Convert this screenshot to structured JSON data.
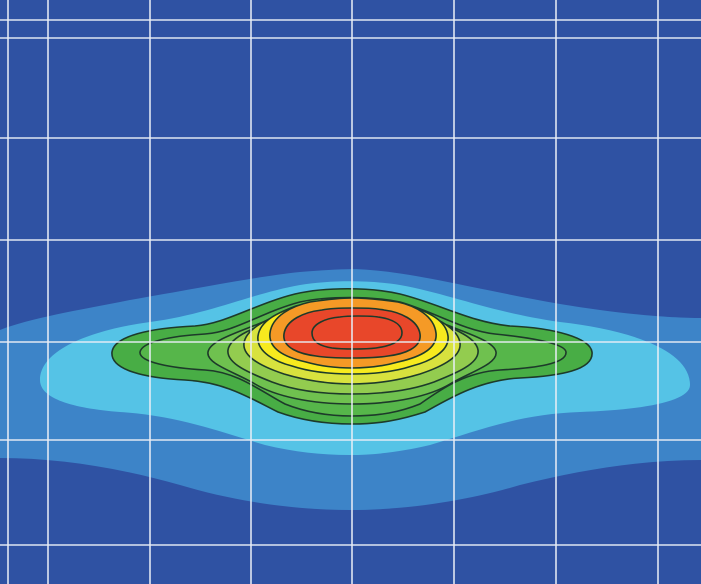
{
  "chart_data": {
    "type": "heatmap",
    "subtype": "filled-contour",
    "title": "",
    "xlabel": "",
    "ylabel": "",
    "x_range": [
      0,
      1
    ],
    "y_range": [
      0,
      1
    ],
    "grid": true,
    "legend": "none",
    "tick_labels_shown": false,
    "peak": {
      "x": 0.5,
      "y": 0.43,
      "level": 1.0
    },
    "levels": [
      0,
      0.1,
      0.2,
      0.3,
      0.4,
      0.5,
      0.6,
      0.7,
      0.8,
      0.9,
      1.0
    ],
    "level_colors": [
      "#2f52a3",
      "#3d84c8",
      "#55c3e6",
      "#48ad45",
      "#56b64a",
      "#6fc14f",
      "#93cc4f",
      "#d8e23e",
      "#f7ea1e",
      "#f59a26",
      "#e8472a"
    ],
    "colors": {
      "background": "#2f52a3",
      "grid": "#e9eef6",
      "contour_line": "#1d3a2a"
    }
  }
}
